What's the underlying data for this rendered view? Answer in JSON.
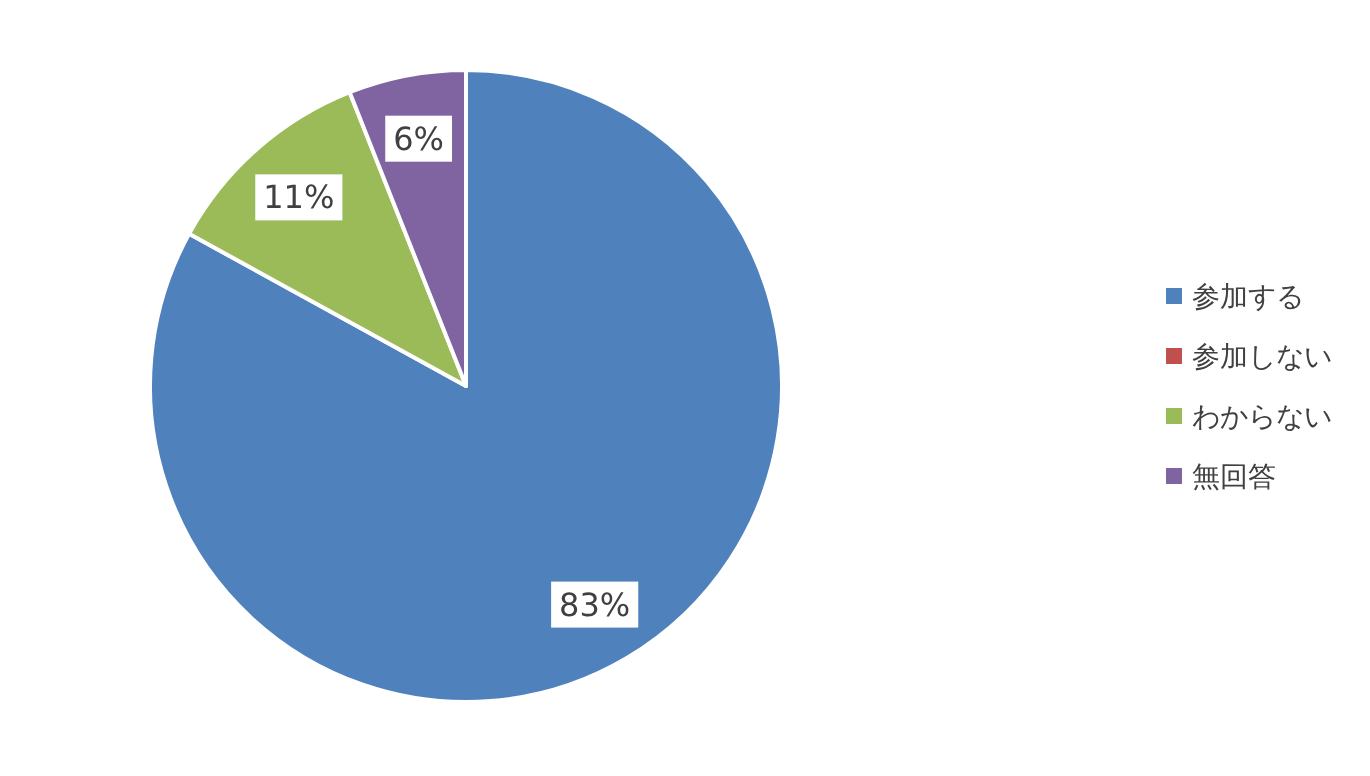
{
  "chart_data": {
    "type": "pie",
    "categories": [
      "参加する",
      "参加しない",
      "わからない",
      "無回答"
    ],
    "values": [
      83,
      0,
      11,
      6
    ],
    "colors": [
      "#4f81bd",
      "#c0504d",
      "#9bbb59",
      "#8064a2"
    ],
    "value_labels": [
      "83%",
      null,
      "11%",
      "6%"
    ],
    "legend": "right"
  }
}
